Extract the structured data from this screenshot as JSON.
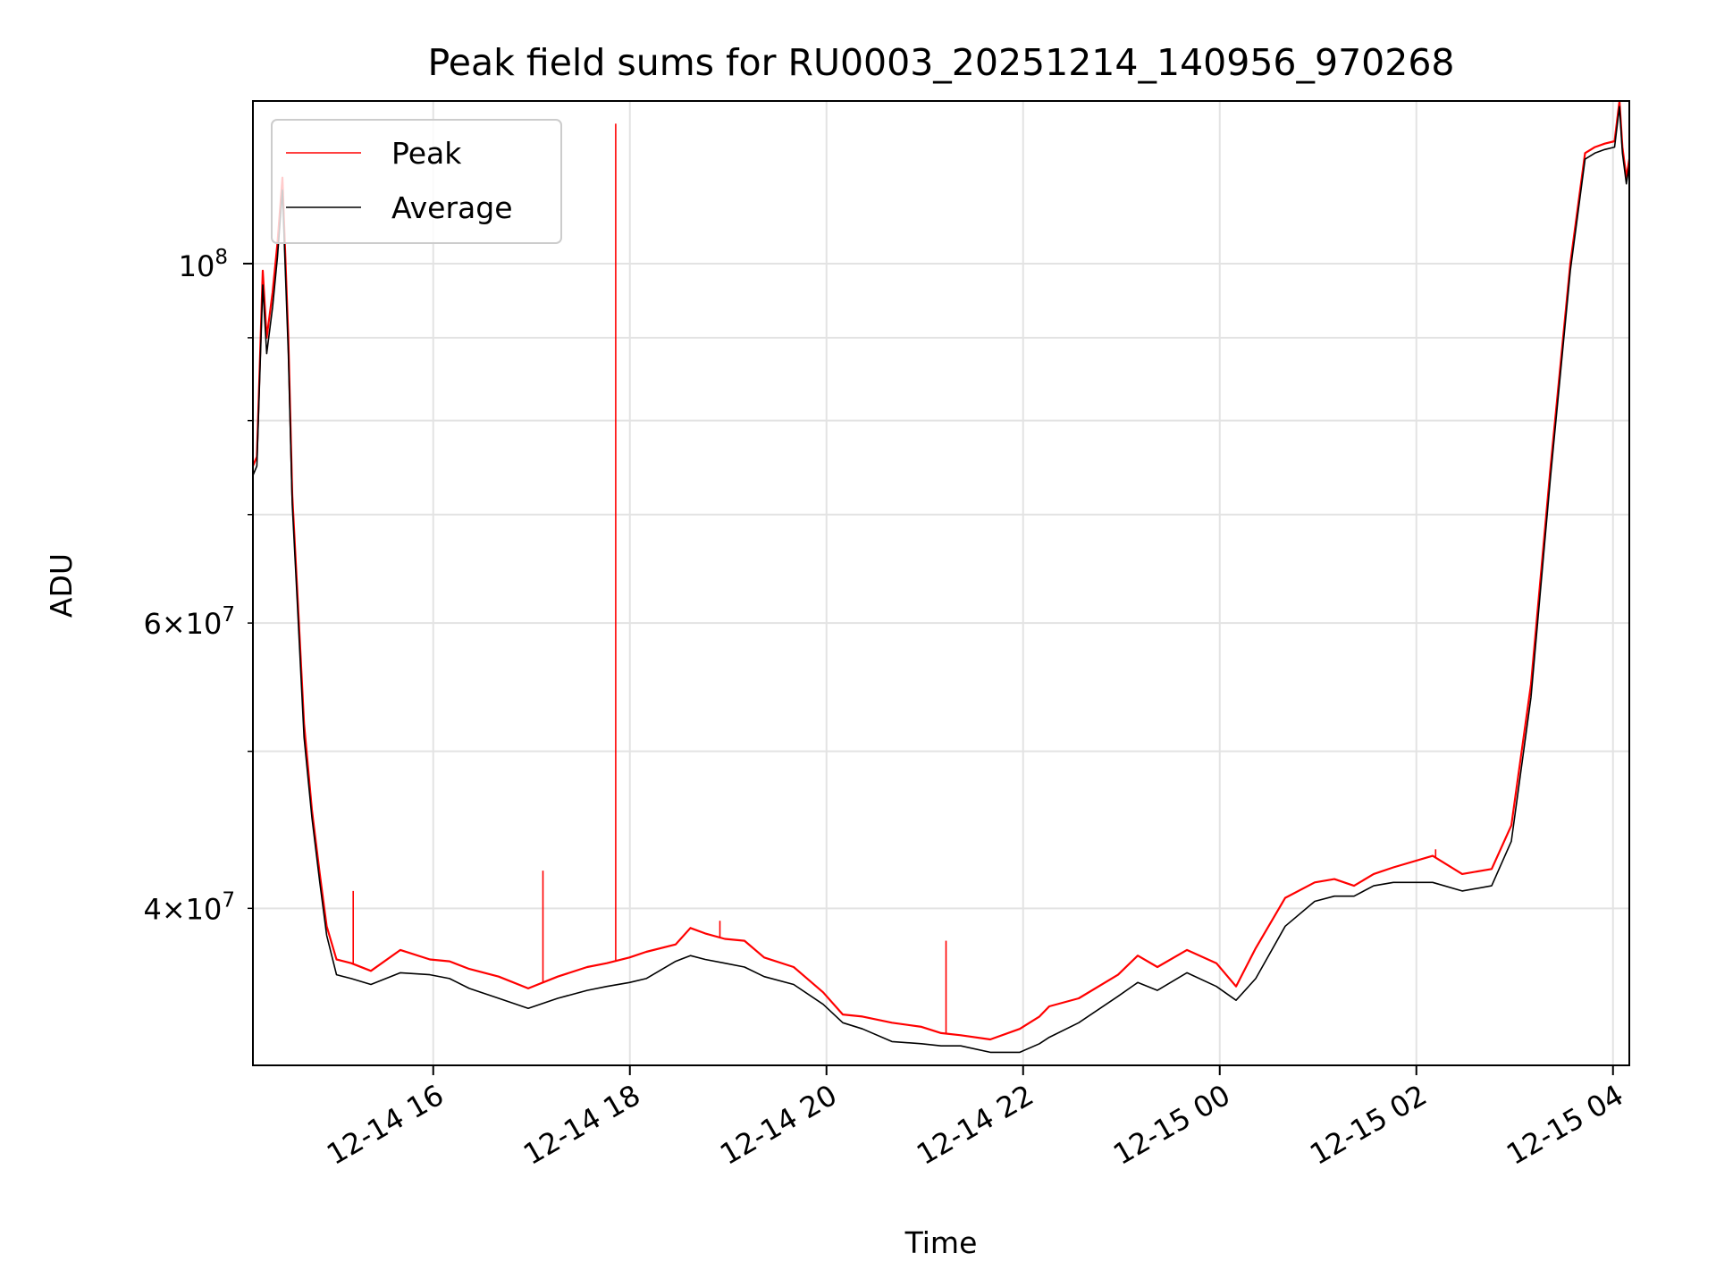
{
  "chart_data": {
    "type": "line",
    "title": "Peak field sums for RU0003_20251214_140956_970268",
    "xlabel": "Time",
    "ylabel": "ADU",
    "yscale": "log",
    "ylim": [
      32000000,
      126000000
    ],
    "xlim_hours": [
      0,
      14.0
    ],
    "x_unit": "hours since 12-14 14:09:56",
    "grid": true,
    "legend_position": "upper-left",
    "x_ticks": [
      {
        "label": "12-14 16",
        "hours": 1.834
      },
      {
        "label": "12-14 18",
        "hours": 3.834
      },
      {
        "label": "12-14 20",
        "hours": 5.834
      },
      {
        "label": "12-14 22",
        "hours": 7.834
      },
      {
        "label": "12-15 00",
        "hours": 9.834
      },
      {
        "label": "12-15 02",
        "hours": 11.834
      },
      {
        "label": "12-15 04",
        "hours": 13.834
      }
    ],
    "y_ticks_major": [
      {
        "value": 100000000,
        "base": "10",
        "exp": "8"
      }
    ],
    "y_ticks_minor": [
      {
        "value": 40000000,
        "mant": "4",
        "base": "10",
        "exp": "7"
      },
      {
        "value": 60000000,
        "mant": "6",
        "base": "10",
        "exp": "7"
      }
    ],
    "y_minor_gridlines": [
      40000000,
      50000000,
      60000000,
      70000000,
      80000000,
      90000000
    ],
    "series": [
      {
        "name": "Peak",
        "color": "#ff0000",
        "x": [
          0.0,
          0.04,
          0.1,
          0.14,
          0.2,
          0.25,
          0.3,
          0.36,
          0.4,
          0.45,
          0.52,
          0.6,
          0.68,
          0.75,
          0.85,
          1.0,
          1.2,
          1.5,
          1.8,
          2.0,
          2.2,
          2.5,
          2.8,
          3.1,
          3.4,
          3.6,
          3.83,
          4.0,
          4.3,
          4.45,
          4.6,
          4.8,
          5.0,
          5.2,
          5.5,
          5.8,
          6.0,
          6.2,
          6.5,
          6.8,
          7.0,
          7.2,
          7.5,
          7.8,
          8.0,
          8.1,
          8.4,
          8.8,
          9.0,
          9.2,
          9.5,
          9.8,
          10.0,
          10.2,
          10.5,
          10.8,
          11.0,
          11.2,
          11.4,
          11.6,
          12.0,
          12.3,
          12.6,
          12.8,
          13.0,
          13.2,
          13.4,
          13.55,
          13.65,
          13.75,
          13.85,
          13.9,
          13.93,
          13.97,
          14.0
        ],
        "y": [
          75000000,
          76000000,
          99000000,
          90000000,
          96000000,
          103000000,
          113000000,
          90000000,
          72000000,
          63000000,
          52000000,
          46000000,
          42000000,
          39000000,
          37200000,
          37000000,
          36600000,
          37700000,
          37200000,
          37100000,
          36700000,
          36300000,
          35700000,
          36300000,
          36800000,
          37000000,
          37300000,
          37600000,
          38000000,
          38900000,
          38600000,
          38300000,
          38200000,
          37300000,
          36800000,
          35500000,
          34400000,
          34300000,
          34000000,
          33800000,
          33500000,
          33400000,
          33200000,
          33700000,
          34300000,
          34800000,
          35200000,
          36400000,
          37400000,
          36800000,
          37700000,
          37000000,
          35800000,
          37800000,
          40600000,
          41500000,
          41700000,
          41300000,
          42000000,
          42400000,
          43100000,
          42000000,
          42300000,
          45000000,
          55000000,
          75000000,
          100000000,
          117000000,
          118000000,
          118600000,
          119000000,
          126000000,
          118000000,
          113000000,
          116000000
        ]
      },
      {
        "name": "Average",
        "color": "#000000",
        "x": [
          0.0,
          0.04,
          0.1,
          0.14,
          0.2,
          0.25,
          0.3,
          0.36,
          0.4,
          0.45,
          0.52,
          0.6,
          0.68,
          0.75,
          0.85,
          1.0,
          1.2,
          1.5,
          1.8,
          2.0,
          2.2,
          2.5,
          2.8,
          3.1,
          3.4,
          3.6,
          3.83,
          4.0,
          4.3,
          4.45,
          4.6,
          4.8,
          5.0,
          5.2,
          5.5,
          5.8,
          6.0,
          6.2,
          6.5,
          6.8,
          7.0,
          7.2,
          7.5,
          7.8,
          8.0,
          8.1,
          8.4,
          8.8,
          9.0,
          9.2,
          9.5,
          9.8,
          10.0,
          10.2,
          10.5,
          10.8,
          11.0,
          11.2,
          11.4,
          11.6,
          12.0,
          12.3,
          12.6,
          12.8,
          13.0,
          13.2,
          13.4,
          13.55,
          13.65,
          13.75,
          13.85,
          13.9,
          13.93,
          13.97,
          14.0
        ],
        "y": [
          74000000,
          75000000,
          97000000,
          88000000,
          94000000,
          101000000,
          111000000,
          88000000,
          71000000,
          62000000,
          51000000,
          45500000,
          41500000,
          38500000,
          36400000,
          36200000,
          35900000,
          36500000,
          36400000,
          36200000,
          35700000,
          35200000,
          34700000,
          35200000,
          35600000,
          35800000,
          36000000,
          36200000,
          37100000,
          37400000,
          37200000,
          37000000,
          36800000,
          36300000,
          35900000,
          34900000,
          34000000,
          33700000,
          33100000,
          33000000,
          32900000,
          32900000,
          32600000,
          32600000,
          33000000,
          33300000,
          34000000,
          35300000,
          36000000,
          35600000,
          36500000,
          35800000,
          35100000,
          36200000,
          39000000,
          40400000,
          40700000,
          40700000,
          41300000,
          41500000,
          41500000,
          41000000,
          41300000,
          44000000,
          54000000,
          74000000,
          99000000,
          116000000,
          117000000,
          117600000,
          118000000,
          125000000,
          117000000,
          112000000,
          115000000
        ]
      }
    ],
    "spikes": [
      {
        "series": "Peak",
        "hours": 1.02,
        "value": 41000000
      },
      {
        "series": "Peak",
        "hours": 2.95,
        "value": 42200000
      },
      {
        "series": "Peak",
        "hours": 3.69,
        "value": 122000000
      },
      {
        "series": "Peak",
        "hours": 4.75,
        "value": 39300000
      },
      {
        "series": "Peak",
        "hours": 7.05,
        "value": 38200000
      },
      {
        "series": "Peak",
        "hours": 12.03,
        "value": 43500000
      }
    ]
  }
}
